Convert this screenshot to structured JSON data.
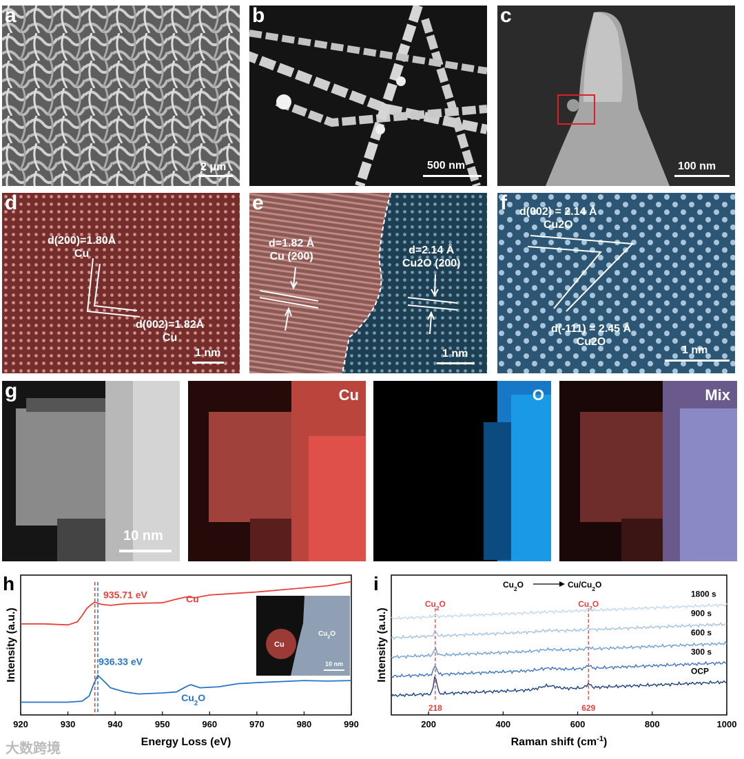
{
  "panels": {
    "a": {
      "label": "a",
      "scale": "2 μm"
    },
    "b": {
      "label": "b",
      "scale": "500 nm"
    },
    "c": {
      "label": "c",
      "scale": "100 nm"
    },
    "d": {
      "label": "d",
      "scale": "1 nm",
      "ann1_l1": "d(200)=1.80Å",
      "ann1_l2": "Cu",
      "ann2_l1": "d(002)=1.82Å",
      "ann2_l2": "Cu"
    },
    "e": {
      "label": "e",
      "scale": "1 nm",
      "left_l1": "d=1.82 Å",
      "left_l2": "Cu (200)",
      "right_l1": "d=2.14 Å",
      "right_l2": "Cu2O (200)"
    },
    "f": {
      "label": "f",
      "scale": "1 nm",
      "top_l1": "d(002) = 2.14 Å",
      "top_l2": "Cu2O",
      "bot_l1": "d(-111) = 2.45 Å",
      "bot_l2": "Cu2O"
    },
    "g": {
      "label": "g",
      "scale": "10 nm",
      "maps": [
        "Cu",
        "O",
        "Mix"
      ]
    }
  },
  "chart_data": [
    {
      "type": "line",
      "label": "h",
      "xlabel": "Energy Loss (eV)",
      "ylabel": "Intensity (a.u.)",
      "xlim": [
        920,
        990
      ],
      "xticks": [
        920,
        930,
        940,
        950,
        960,
        970,
        980,
        990
      ],
      "series": [
        {
          "name": "Cu",
          "color": "#e8403a",
          "x": [
            920,
            925,
            930,
            932,
            933,
            934,
            935,
            935.71,
            937,
            939,
            942,
            945,
            950,
            953,
            955,
            957,
            960,
            965,
            970,
            975,
            980,
            985,
            990
          ],
          "y": [
            0.78,
            0.78,
            0.77,
            0.8,
            0.86,
            0.93,
            0.97,
            0.99,
            0.97,
            0.96,
            0.975,
            0.98,
            0.985,
            1.02,
            1.04,
            1.035,
            1.06,
            1.075,
            1.09,
            1.11,
            1.13,
            1.15,
            1.19
          ]
        },
        {
          "name": "Cu2O",
          "color": "#2574c9",
          "x": [
            920,
            925,
            930,
            933,
            934.5,
            935.5,
            936.33,
            937.5,
            939,
            942,
            945,
            950,
            953,
            955,
            956,
            958,
            962,
            966,
            970,
            975,
            980,
            985,
            990
          ],
          "y": [
            0.02,
            0.02,
            0.02,
            0.03,
            0.08,
            0.2,
            0.28,
            0.23,
            0.16,
            0.12,
            0.1,
            0.11,
            0.12,
            0.17,
            0.19,
            0.16,
            0.17,
            0.2,
            0.21,
            0.22,
            0.23,
            0.225,
            0.23
          ]
        }
      ],
      "annotations": [
        {
          "text": "935.71 eV",
          "x": 935.71,
          "color": "#e8403a"
        },
        {
          "text": "936.33 eV",
          "x": 936.33,
          "color": "#2574c9"
        }
      ],
      "inset": {
        "cu_label": "Cu",
        "cu2o_label": "Cu2O",
        "scale": "10 nm"
      }
    },
    {
      "type": "line",
      "label": "i",
      "xlabel": "Raman shift (cm-1)",
      "ylabel": "Intensity (a.u.)",
      "xlim": [
        100,
        1000
      ],
      "xticks": [
        200,
        400,
        600,
        800,
        1000
      ],
      "header": {
        "from": "Cu2O",
        "to": "Cu/Cu2O"
      },
      "peaks": [
        {
          "x": 218,
          "label": "Cu2O",
          "value_label": "218"
        },
        {
          "x": 629,
          "label": "Cu2O",
          "value_label": "629"
        }
      ],
      "series": [
        {
          "name": "1800 s",
          "color": "#c4d8ef",
          "offset": 4,
          "peak1": 0.1,
          "peak2": 0.05
        },
        {
          "name": "900 s",
          "color": "#a3c3e6",
          "offset": 3,
          "peak1": 0.25,
          "peak2": 0.1
        },
        {
          "name": "600 s",
          "color": "#6e9fd6",
          "offset": 2,
          "peak1": 0.35,
          "peak2": 0.12
        },
        {
          "name": "300 s",
          "color": "#3f74c2",
          "offset": 1,
          "peak1": 0.5,
          "peak2": 0.2
        },
        {
          "name": "OCP",
          "color": "#1b3f7e",
          "offset": 0,
          "peak1": 1.0,
          "peak2": 0.25
        }
      ]
    }
  ],
  "watermark": "大数跨境",
  "colors": {
    "cu": "#e8403a",
    "cu2o": "#2574c9",
    "peak_dash": "#e8403a"
  }
}
